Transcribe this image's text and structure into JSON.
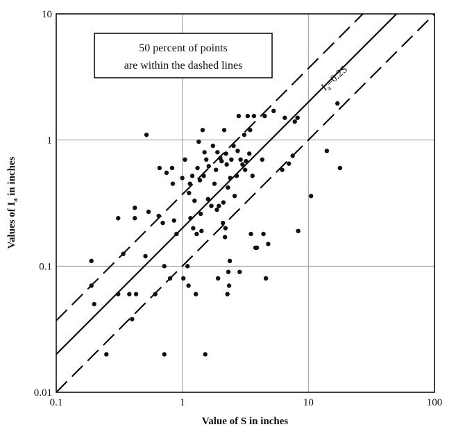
{
  "chart_data": {
    "type": "scatter",
    "xscale": "log",
    "yscale": "log",
    "xlim": [
      0.1,
      100
    ],
    "ylim": [
      0.01,
      10
    ],
    "xlabel": "Value of S in inches",
    "ylabel_main": "Values of I",
    "ylabel_sub": "a",
    "ylabel_rest": " in inches",
    "xticks": [
      {
        "value": 0.1,
        "label": "0.1"
      },
      {
        "value": 1,
        "label": "1"
      },
      {
        "value": 10,
        "label": "10"
      },
      {
        "value": 100,
        "label": "100"
      }
    ],
    "yticks": [
      {
        "value": 0.01,
        "label": "0.01"
      },
      {
        "value": 0.1,
        "label": "0.1"
      },
      {
        "value": 1,
        "label": "1"
      },
      {
        "value": 10,
        "label": "10"
      }
    ],
    "grid": true,
    "annotation": {
      "line1": "50 percent of points",
      "line2": "are within the dashed lines"
    },
    "lines": [
      {
        "style": "solid",
        "coef": 0.2,
        "label_main": "I",
        "label_sub": "a",
        "label_rest": "=0.2S"
      },
      {
        "style": "dashed",
        "coef": 0.37
      },
      {
        "style": "dashed",
        "coef": 0.1
      }
    ],
    "points": [
      [
        0.19,
        0.11
      ],
      [
        0.19,
        0.07
      ],
      [
        0.2,
        0.05
      ],
      [
        0.25,
        0.02
      ],
      [
        0.31,
        0.24
      ],
      [
        0.31,
        0.06
      ],
      [
        0.34,
        0.125
      ],
      [
        0.38,
        0.06
      ],
      [
        0.4,
        0.038
      ],
      [
        0.42,
        0.29
      ],
      [
        0.42,
        0.24
      ],
      [
        0.43,
        0.06
      ],
      [
        0.51,
        0.12
      ],
      [
        0.52,
        1.1
      ],
      [
        0.54,
        0.27
      ],
      [
        0.61,
        0.06
      ],
      [
        0.65,
        0.25
      ],
      [
        0.66,
        0.6
      ],
      [
        0.7,
        0.22
      ],
      [
        0.72,
        0.1
      ],
      [
        0.72,
        0.02
      ],
      [
        0.75,
        0.55
      ],
      [
        0.8,
        0.08
      ],
      [
        0.83,
        0.6
      ],
      [
        0.84,
        0.45
      ],
      [
        0.86,
        0.23
      ],
      [
        0.9,
        0.18
      ],
      [
        1.0,
        0.5
      ],
      [
        1.02,
        0.08
      ],
      [
        1.05,
        0.7
      ],
      [
        1.1,
        0.1
      ],
      [
        1.12,
        0.07
      ],
      [
        1.13,
        0.38
      ],
      [
        1.15,
        0.45
      ],
      [
        1.16,
        0.24
      ],
      [
        1.2,
        0.52
      ],
      [
        1.22,
        0.2
      ],
      [
        1.25,
        0.33
      ],
      [
        1.28,
        0.06
      ],
      [
        1.3,
        0.18
      ],
      [
        1.32,
        0.6
      ],
      [
        1.35,
        0.97
      ],
      [
        1.38,
        0.48
      ],
      [
        1.4,
        0.26
      ],
      [
        1.42,
        0.19
      ],
      [
        1.45,
        1.2
      ],
      [
        1.48,
        0.52
      ],
      [
        1.5,
        0.8
      ],
      [
        1.52,
        0.02
      ],
      [
        1.55,
        0.7
      ],
      [
        1.6,
        0.34
      ],
      [
        1.62,
        0.62
      ],
      [
        1.7,
        0.3
      ],
      [
        1.75,
        0.9
      ],
      [
        1.8,
        0.45
      ],
      [
        1.85,
        0.58
      ],
      [
        1.88,
        0.28
      ],
      [
        1.9,
        0.8
      ],
      [
        1.92,
        0.08
      ],
      [
        1.95,
        0.3
      ],
      [
        2.0,
        0.72
      ],
      [
        2.05,
        0.68
      ],
      [
        2.1,
        0.22
      ],
      [
        2.12,
        0.32
      ],
      [
        2.15,
        1.2
      ],
      [
        2.18,
        0.17
      ],
      [
        2.2,
        0.2
      ],
      [
        2.22,
        0.78
      ],
      [
        2.25,
        0.64
      ],
      [
        2.28,
        0.06
      ],
      [
        2.3,
        0.42
      ],
      [
        2.32,
        0.09
      ],
      [
        2.35,
        0.07
      ],
      [
        2.38,
        0.11
      ],
      [
        2.4,
        0.5
      ],
      [
        2.45,
        0.7
      ],
      [
        2.55,
        0.9
      ],
      [
        2.6,
        0.36
      ],
      [
        2.7,
        0.52
      ],
      [
        2.75,
        0.82
      ],
      [
        2.8,
        1.55
      ],
      [
        2.85,
        0.09
      ],
      [
        2.9,
        0.7
      ],
      [
        3.0,
        0.64
      ],
      [
        3.1,
        1.1
      ],
      [
        3.15,
        0.58
      ],
      [
        3.2,
        0.68
      ],
      [
        3.3,
        1.55
      ],
      [
        3.4,
        0.78
      ],
      [
        3.45,
        1.2
      ],
      [
        3.5,
        0.18
      ],
      [
        3.6,
        0.52
      ],
      [
        3.7,
        1.55
      ],
      [
        3.8,
        0.14
      ],
      [
        3.9,
        0.14
      ],
      [
        4.3,
        0.7
      ],
      [
        4.4,
        0.18
      ],
      [
        4.5,
        1.55
      ],
      [
        4.6,
        0.08
      ],
      [
        4.8,
        0.15
      ],
      [
        5.3,
        1.7
      ],
      [
        6.2,
        0.58
      ],
      [
        6.5,
        1.5
      ],
      [
        7.0,
        0.65
      ],
      [
        7.5,
        0.75
      ],
      [
        7.8,
        1.4
      ],
      [
        8.2,
        1.5
      ],
      [
        8.3,
        0.19
      ],
      [
        10.5,
        0.36
      ],
      [
        14.0,
        0.82
      ],
      [
        17.0,
        1.95
      ],
      [
        17.8,
        0.6
      ]
    ]
  }
}
